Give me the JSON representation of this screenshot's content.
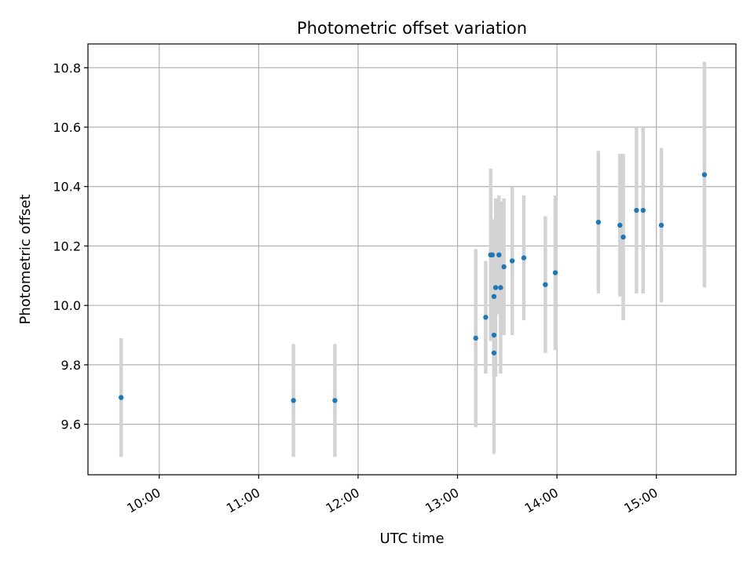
{
  "chart_data": {
    "type": "scatter",
    "title": "Photometric offset variation",
    "xlabel": "UTC time",
    "ylabel": "Photometric offset",
    "xlim": [
      "09:17",
      "15:48"
    ],
    "ylim": [
      9.43,
      10.88
    ],
    "x_ticks": [
      "10:00",
      "11:00",
      "12:00",
      "13:00",
      "14:00",
      "15:00"
    ],
    "y_ticks": [
      9.6,
      9.8,
      10.0,
      10.2,
      10.4,
      10.6,
      10.8
    ],
    "y_tick_labels": [
      "9.6",
      "9.8",
      "10.0",
      "10.2",
      "10.4",
      "10.6",
      "10.8"
    ],
    "grid": true,
    "marker_color": "#1f77b4",
    "errorbar_color": "#d3d3d3",
    "points": [
      {
        "t": "09:37",
        "y": 9.69,
        "err": 0.2
      },
      {
        "t": "11:21",
        "y": 9.68,
        "err": 0.19
      },
      {
        "t": "11:46",
        "y": 9.68,
        "err": 0.19
      },
      {
        "t": "13:11",
        "y": 9.89,
        "err": 0.3
      },
      {
        "t": "13:17",
        "y": 9.96,
        "err": 0.19
      },
      {
        "t": "13:20",
        "y": 10.17,
        "err": 0.29
      },
      {
        "t": "13:21",
        "y": 10.17,
        "err": 0.12
      },
      {
        "t": "13:22",
        "y": 10.03,
        "err": 0.26
      },
      {
        "t": "13:22",
        "y": 9.9,
        "err": 0.14
      },
      {
        "t": "13:22",
        "y": 9.84,
        "err": 0.34
      },
      {
        "t": "13:23",
        "y": 10.06,
        "err": 0.3
      },
      {
        "t": "13:25",
        "y": 10.17,
        "err": 0.2
      },
      {
        "t": "13:26",
        "y": 10.06,
        "err": 0.29
      },
      {
        "t": "13:28",
        "y": 10.13,
        "err": 0.23
      },
      {
        "t": "13:33",
        "y": 10.15,
        "err": 0.25
      },
      {
        "t": "13:40",
        "y": 10.16,
        "err": 0.21
      },
      {
        "t": "13:53",
        "y": 10.07,
        "err": 0.23
      },
      {
        "t": "13:59",
        "y": 10.11,
        "err": 0.26
      },
      {
        "t": "14:25",
        "y": 10.28,
        "err": 0.24
      },
      {
        "t": "14:38",
        "y": 10.27,
        "err": 0.24
      },
      {
        "t": "14:40",
        "y": 10.23,
        "err": 0.28
      },
      {
        "t": "14:48",
        "y": 10.32,
        "err": 0.28
      },
      {
        "t": "14:52",
        "y": 10.32,
        "err": 0.28
      },
      {
        "t": "15:03",
        "y": 10.27,
        "err": 0.26
      },
      {
        "t": "15:29",
        "y": 10.44,
        "err": 0.38
      }
    ]
  }
}
